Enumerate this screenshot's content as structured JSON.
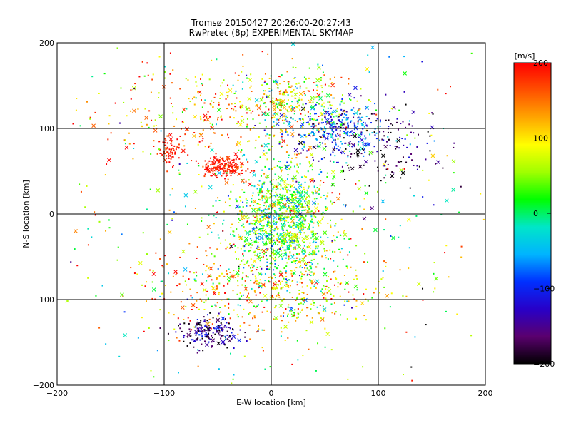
{
  "chart_data": {
    "type": "scatter",
    "title": "Tromsø 20150427 20:26:00-20:27:43",
    "subtitle": "RwPretec (8p) EXPERIMENTAL SKYMAP",
    "xlabel": "E-W location [km]",
    "ylabel": "N-S location [km]",
    "xlim": [
      -200,
      200
    ],
    "ylim": [
      -200,
      200
    ],
    "xticks": [
      -200,
      -100,
      0,
      100,
      200
    ],
    "yticks": [
      -200,
      -100,
      0,
      100,
      200
    ],
    "xtick_labels": [
      "−200",
      "−100",
      "0",
      "100",
      "200"
    ],
    "ytick_labels": [
      "−200",
      "−100",
      "0",
      "100",
      "200"
    ],
    "grid": true,
    "grid_lines": [
      -100,
      0,
      100
    ],
    "markers": [
      "dot",
      "x"
    ],
    "colorbar": {
      "label": "[m/s]",
      "range": [
        -200,
        200
      ],
      "ticks": [
        200,
        100,
        0,
        -100,
        -200
      ],
      "tick_labels": [
        "200",
        "100",
        "0",
        "−100",
        "−200"
      ],
      "colormap": [
        "#000000",
        "#5a006e",
        "#2800c8",
        "#0030ff",
        "#00b4ff",
        "#00e6c8",
        "#00ff00",
        "#a0ff00",
        "#ffff00",
        "#ffa500",
        "#ff5000",
        "#ff0000"
      ]
    },
    "clusters": [
      {
        "x": 10,
        "y": -15,
        "sx": 25,
        "sy": 30,
        "n": 900,
        "vel": 30,
        "vsd": 55
      },
      {
        "x": 15,
        "y": 20,
        "sx": 15,
        "sy": 25,
        "n": 250,
        "vel": 40,
        "vsd": 60
      },
      {
        "x": 60,
        "y": 100,
        "sx": 25,
        "sy": 15,
        "n": 320,
        "vel": -90,
        "vsd": 50
      },
      {
        "x": 20,
        "y": 130,
        "sx": 30,
        "sy": 18,
        "n": 280,
        "vel": 70,
        "vsd": 70
      },
      {
        "x": -45,
        "y": 55,
        "sx": 10,
        "sy": 6,
        "n": 170,
        "vel": 190,
        "vsd": 15
      },
      {
        "x": -95,
        "y": 75,
        "sx": 6,
        "sy": 8,
        "n": 70,
        "vel": 185,
        "vsd": 20
      },
      {
        "x": -55,
        "y": -140,
        "sx": 14,
        "sy": 9,
        "n": 180,
        "vel": -160,
        "vsd": 40
      },
      {
        "x": -60,
        "y": 115,
        "sx": 55,
        "sy": 30,
        "n": 220,
        "vel": 140,
        "vsd": 60
      },
      {
        "x": 100,
        "y": 80,
        "sx": 35,
        "sy": 25,
        "n": 160,
        "vel": -170,
        "vsd": 40
      },
      {
        "x": 30,
        "y": -90,
        "sx": 35,
        "sy": 25,
        "n": 260,
        "vel": 90,
        "vsd": 60
      },
      {
        "x": -50,
        "y": -90,
        "sx": 40,
        "sy": 25,
        "n": 220,
        "vel": 130,
        "vsd": 70
      },
      {
        "x": 0,
        "y": 0,
        "sx": 120,
        "sy": 120,
        "n": 500,
        "vel": 60,
        "vsd": 100
      }
    ]
  }
}
